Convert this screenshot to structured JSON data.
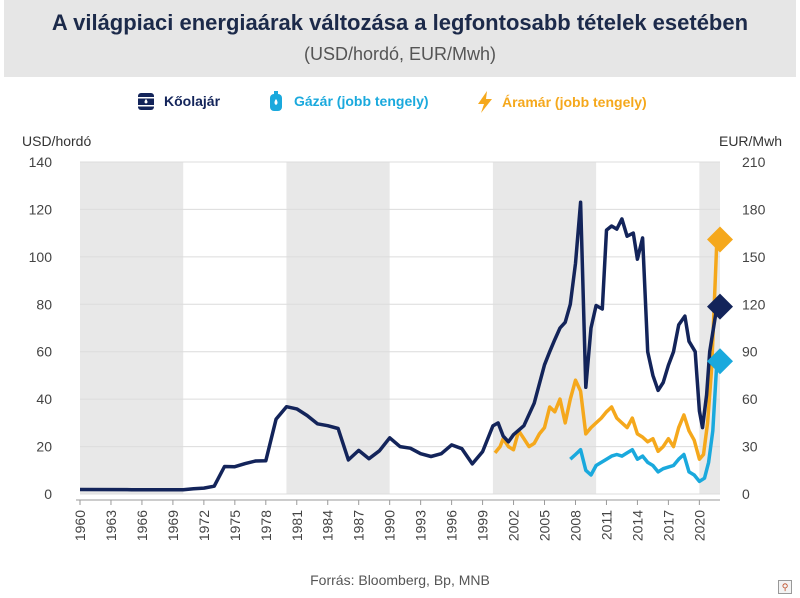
{
  "title": "A világpiaci energiaárak változása a legfontosabb tételek esetében",
  "subtitle": "(USD/hordó, EUR/Mwh)",
  "source": "Forrás: Bloomberg, Bp, MNB",
  "colors": {
    "oil": "#13245a",
    "gas": "#1aa9dd",
    "power": "#f5a81c",
    "shade": "#e8e8e8"
  },
  "legend": {
    "oil": {
      "label": "Kőolajár",
      "icon": "oil-barrel-icon"
    },
    "gas": {
      "label": "Gázár (jobb tengely)",
      "icon": "gas-cylinder-icon"
    },
    "power": {
      "label": "Áramár (jobb tengely)",
      "icon": "lightning-bolt-icon"
    }
  },
  "chart_data": {
    "type": "line",
    "left_axis_label": "USD/hordó",
    "right_axis_label": "EUR/Mwh",
    "ylim_left": [
      0,
      140
    ],
    "ylim_right": [
      0,
      210
    ],
    "left_ticks": [
      0,
      20,
      40,
      60,
      80,
      100,
      120,
      140
    ],
    "right_ticks": [
      0,
      30,
      60,
      90,
      120,
      150,
      180,
      210
    ],
    "x_tick_labels": [
      "1960",
      "1963",
      "1966",
      "1969",
      "1972",
      "1975",
      "1978",
      "1981",
      "1984",
      "1987",
      "1990",
      "1993",
      "1996",
      "1999",
      "2002",
      "2005",
      "2008",
      "2011",
      "2014",
      "2017",
      "2020"
    ],
    "xlim": [
      1960,
      2022
    ],
    "shaded_periods": [
      [
        1960,
        1970
      ],
      [
        1980,
        1990
      ],
      [
        2000,
        2010
      ],
      [
        2020,
        2022
      ]
    ],
    "grid": "horizontal",
    "series": [
      {
        "name": "Kőolajár",
        "axis": "left",
        "marker": "diamond",
        "last_marker_value": 79,
        "points": [
          [
            1960,
            1.9
          ],
          [
            1965,
            1.8
          ],
          [
            1970,
            1.8
          ],
          [
            1971,
            2.2
          ],
          [
            1972,
            2.5
          ],
          [
            1973,
            3.3
          ],
          [
            1974,
            11.6
          ],
          [
            1975,
            11.5
          ],
          [
            1976,
            12.8
          ],
          [
            1977,
            13.9
          ],
          [
            1978,
            14.0
          ],
          [
            1979,
            31.6
          ],
          [
            1980,
            36.8
          ],
          [
            1981,
            35.9
          ],
          [
            1982,
            33.1
          ],
          [
            1983,
            29.6
          ],
          [
            1984,
            28.8
          ],
          [
            1985,
            27.6
          ],
          [
            1986,
            14.4
          ],
          [
            1987,
            18.4
          ],
          [
            1988,
            14.9
          ],
          [
            1989,
            18.2
          ],
          [
            1990,
            23.7
          ],
          [
            1991,
            20.0
          ],
          [
            1992,
            19.3
          ],
          [
            1993,
            17.0
          ],
          [
            1994,
            15.8
          ],
          [
            1995,
            17.0
          ],
          [
            1996,
            20.7
          ],
          [
            1997,
            19.1
          ],
          [
            1998,
            12.7
          ],
          [
            1999,
            17.9
          ],
          [
            2000,
            28.7
          ],
          [
            2000.5,
            30
          ],
          [
            2001,
            24.4
          ],
          [
            2001.5,
            22
          ],
          [
            2002,
            25.0
          ],
          [
            2003,
            28.8
          ],
          [
            2004,
            38.3
          ],
          [
            2005,
            54.5
          ],
          [
            2005.5,
            60
          ],
          [
            2006,
            65.1
          ],
          [
            2006.5,
            70
          ],
          [
            2007,
            72.4
          ],
          [
            2007.5,
            80
          ],
          [
            2008,
            97.3
          ],
          [
            2008.5,
            123
          ],
          [
            2008.9,
            60
          ],
          [
            2009,
            45
          ],
          [
            2009.5,
            70
          ],
          [
            2010,
            79.5
          ],
          [
            2010.6,
            78
          ],
          [
            2011,
            111.3
          ],
          [
            2011.5,
            113
          ],
          [
            2012,
            111.7
          ],
          [
            2012.5,
            116
          ],
          [
            2013,
            108.7
          ],
          [
            2013.6,
            110
          ],
          [
            2014,
            99
          ],
          [
            2014.5,
            108
          ],
          [
            2015,
            60
          ],
          [
            2015.5,
            50
          ],
          [
            2016,
            43.7
          ],
          [
            2016.5,
            47
          ],
          [
            2017,
            54.3
          ],
          [
            2017.5,
            60
          ],
          [
            2018,
            71.3
          ],
          [
            2018.6,
            75
          ],
          [
            2019,
            64.4
          ],
          [
            2019.6,
            60
          ],
          [
            2020,
            35
          ],
          [
            2020.3,
            28
          ],
          [
            2020.7,
            41.8
          ],
          [
            2021,
            60
          ],
          [
            2021.7,
            79
          ]
        ]
      },
      {
        "name": "Gázár (jobb tengely)",
        "axis": "right",
        "marker": "diamond",
        "last_marker_value": 84,
        "points": [
          [
            2007.5,
            22
          ],
          [
            2008,
            25
          ],
          [
            2008.5,
            28
          ],
          [
            2009,
            15
          ],
          [
            2009.5,
            12
          ],
          [
            2010,
            18
          ],
          [
            2010.5,
            20
          ],
          [
            2011,
            22
          ],
          [
            2011.5,
            24
          ],
          [
            2012,
            25
          ],
          [
            2012.5,
            24
          ],
          [
            2013,
            26
          ],
          [
            2013.5,
            28
          ],
          [
            2014,
            22
          ],
          [
            2014.5,
            24
          ],
          [
            2015,
            20
          ],
          [
            2015.5,
            18
          ],
          [
            2016,
            14
          ],
          [
            2016.5,
            16
          ],
          [
            2017,
            17
          ],
          [
            2017.5,
            18
          ],
          [
            2018,
            22
          ],
          [
            2018.5,
            25
          ],
          [
            2019,
            14
          ],
          [
            2019.5,
            12
          ],
          [
            2020,
            8
          ],
          [
            2020.5,
            10
          ],
          [
            2020.9,
            20
          ],
          [
            2021.3,
            40
          ],
          [
            2021.7,
            84
          ]
        ]
      },
      {
        "name": "Áramár (jobb tengely)",
        "axis": "right",
        "marker": "diamond",
        "last_marker_value": 161,
        "points": [
          [
            2000.2,
            26
          ],
          [
            2000.7,
            30
          ],
          [
            2001,
            35
          ],
          [
            2001.5,
            30
          ],
          [
            2002,
            28
          ],
          [
            2002.5,
            40
          ],
          [
            2003,
            35
          ],
          [
            2003.5,
            30
          ],
          [
            2004,
            32
          ],
          [
            2004.5,
            38
          ],
          [
            2005,
            42
          ],
          [
            2005.5,
            55
          ],
          [
            2006,
            52
          ],
          [
            2006.5,
            60
          ],
          [
            2007,
            45
          ],
          [
            2007.5,
            60
          ],
          [
            2008,
            72
          ],
          [
            2008.5,
            65
          ],
          [
            2009,
            38
          ],
          [
            2009.5,
            42
          ],
          [
            2010,
            45
          ],
          [
            2010.5,
            48
          ],
          [
            2011,
            52
          ],
          [
            2011.5,
            55
          ],
          [
            2012,
            48
          ],
          [
            2012.5,
            45
          ],
          [
            2013,
            42
          ],
          [
            2013.5,
            48
          ],
          [
            2014,
            38
          ],
          [
            2014.5,
            36
          ],
          [
            2015,
            33
          ],
          [
            2015.5,
            35
          ],
          [
            2016,
            27
          ],
          [
            2016.5,
            30
          ],
          [
            2017,
            35
          ],
          [
            2017.5,
            30
          ],
          [
            2018,
            42
          ],
          [
            2018.5,
            50
          ],
          [
            2019,
            40
          ],
          [
            2019.5,
            34
          ],
          [
            2020,
            22
          ],
          [
            2020.4,
            25
          ],
          [
            2020.8,
            45
          ],
          [
            2021.2,
            80
          ],
          [
            2021.7,
            161
          ]
        ]
      }
    ]
  }
}
